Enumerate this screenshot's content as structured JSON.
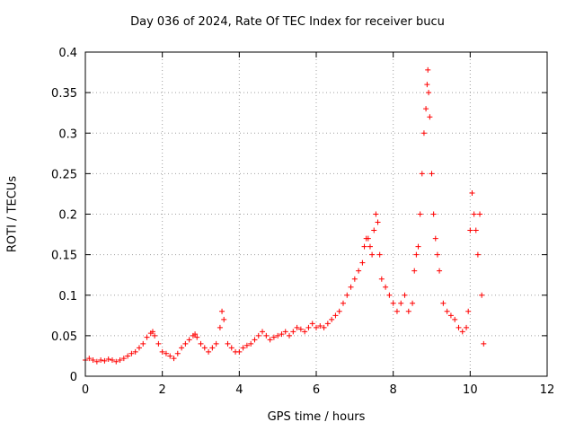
{
  "chart_data": {
    "type": "scatter",
    "title": "Day 036 of 2024, Rate Of TEC Index for receiver bucu",
    "xlabel": "GPS time / hours",
    "ylabel": "ROTI / TECUs",
    "xlim": [
      0,
      12
    ],
    "ylim": [
      0,
      0.4
    ],
    "xticks": [
      "0",
      "2",
      "4",
      "6",
      "8",
      "10",
      "12"
    ],
    "yticks": [
      "0",
      "0.05",
      "0.1",
      "0.15",
      "0.2",
      "0.25",
      "0.3",
      "0.35",
      "0.4"
    ],
    "grid": true,
    "marker": "+",
    "color": "#ff0000",
    "series": [
      {
        "name": "ROTI",
        "x": [
          0.0,
          0.1,
          0.2,
          0.3,
          0.4,
          0.5,
          0.6,
          0.7,
          0.8,
          0.9,
          1.0,
          1.1,
          1.2,
          1.3,
          1.4,
          1.5,
          1.6,
          1.7,
          1.75,
          1.8,
          1.9,
          2.0,
          2.1,
          2.2,
          2.3,
          2.4,
          2.5,
          2.6,
          2.7,
          2.8,
          2.85,
          2.9,
          3.0,
          3.1,
          3.2,
          3.3,
          3.4,
          3.5,
          3.55,
          3.6,
          3.7,
          3.8,
          3.9,
          4.0,
          4.1,
          4.2,
          4.3,
          4.4,
          4.5,
          4.6,
          4.7,
          4.8,
          4.9,
          5.0,
          5.1,
          5.2,
          5.3,
          5.4,
          5.5,
          5.6,
          5.7,
          5.8,
          5.9,
          6.0,
          6.1,
          6.2,
          6.3,
          6.4,
          6.5,
          6.6,
          6.7,
          6.8,
          6.9,
          7.0,
          7.1,
          7.2,
          7.25,
          7.3,
          7.35,
          7.4,
          7.45,
          7.5,
          7.55,
          7.6,
          7.65,
          7.7,
          7.8,
          7.9,
          8.0,
          8.1,
          8.2,
          8.3,
          8.4,
          8.5,
          8.55,
          8.6,
          8.65,
          8.7,
          8.75,
          8.8,
          8.85,
          8.88,
          8.9,
          8.92,
          8.95,
          9.0,
          9.05,
          9.1,
          9.15,
          9.2,
          9.3,
          9.4,
          9.5,
          9.6,
          9.7,
          9.8,
          9.9,
          9.95,
          10.0,
          10.05,
          10.1,
          10.15,
          10.2,
          10.25,
          10.3,
          10.35
        ],
        "y": [
          0.02,
          0.022,
          0.02,
          0.018,
          0.02,
          0.019,
          0.021,
          0.02,
          0.018,
          0.02,
          0.022,
          0.025,
          0.028,
          0.03,
          0.035,
          0.04,
          0.048,
          0.053,
          0.055,
          0.05,
          0.04,
          0.03,
          0.028,
          0.025,
          0.022,
          0.028,
          0.035,
          0.04,
          0.045,
          0.05,
          0.052,
          0.048,
          0.04,
          0.035,
          0.03,
          0.035,
          0.04,
          0.06,
          0.08,
          0.07,
          0.04,
          0.035,
          0.03,
          0.03,
          0.035,
          0.038,
          0.04,
          0.045,
          0.05,
          0.055,
          0.05,
          0.045,
          0.048,
          0.05,
          0.052,
          0.055,
          0.05,
          0.055,
          0.06,
          0.058,
          0.055,
          0.06,
          0.065,
          0.06,
          0.062,
          0.06,
          0.065,
          0.07,
          0.075,
          0.08,
          0.09,
          0.1,
          0.11,
          0.12,
          0.13,
          0.14,
          0.16,
          0.17,
          0.17,
          0.16,
          0.15,
          0.18,
          0.2,
          0.19,
          0.15,
          0.12,
          0.11,
          0.1,
          0.09,
          0.08,
          0.09,
          0.1,
          0.08,
          0.09,
          0.13,
          0.15,
          0.16,
          0.2,
          0.25,
          0.3,
          0.33,
          0.36,
          0.378,
          0.35,
          0.32,
          0.25,
          0.2,
          0.17,
          0.15,
          0.13,
          0.09,
          0.08,
          0.075,
          0.07,
          0.06,
          0.055,
          0.06,
          0.08,
          0.18,
          0.226,
          0.2,
          0.18,
          0.15,
          0.2,
          0.1,
          0.04
        ]
      }
    ]
  }
}
